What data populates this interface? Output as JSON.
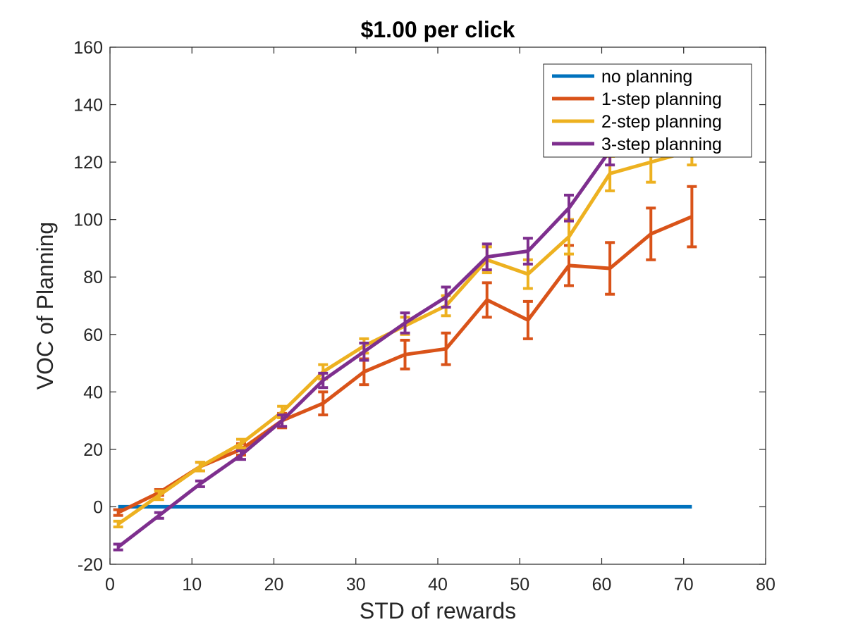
{
  "chart_data": {
    "type": "line",
    "title": "$1.00 per click",
    "xlabel": "STD of rewards",
    "ylabel": "VOC of Planning",
    "xlim": [
      0,
      80
    ],
    "ylim": [
      -20,
      160
    ],
    "xticks": [
      0,
      10,
      20,
      30,
      40,
      50,
      60,
      70,
      80
    ],
    "yticks": [
      -20,
      0,
      20,
      40,
      60,
      80,
      100,
      120,
      140,
      160
    ],
    "grid": false,
    "legend_position": "top-right",
    "series": [
      {
        "name": "no planning",
        "color": "#0072BD",
        "x": [
          1,
          6,
          11,
          16,
          21,
          26,
          31,
          36,
          41,
          46,
          51,
          56,
          61,
          66,
          71
        ],
        "y": [
          0,
          0,
          0,
          0,
          0,
          0,
          0,
          0,
          0,
          0,
          0,
          0,
          0,
          0,
          0
        ],
        "err": [
          0,
          0,
          0,
          0,
          0,
          0,
          0,
          0,
          0,
          0,
          0,
          0,
          0,
          0,
          0
        ]
      },
      {
        "name": "1-step planning",
        "color": "#D95319",
        "x": [
          1,
          6,
          11,
          16,
          21,
          26,
          31,
          36,
          41,
          46,
          51,
          56,
          61,
          66,
          71
        ],
        "y": [
          -2,
          5,
          14,
          20,
          30,
          36,
          47,
          53,
          55,
          72,
          65,
          84,
          83,
          95,
          101
        ],
        "err": [
          1,
          1,
          1.5,
          2,
          2.5,
          4,
          4.5,
          5,
          5.5,
          6,
          6.5,
          7,
          9,
          9,
          10.5
        ]
      },
      {
        "name": "2-step planning",
        "color": "#EDB120",
        "x": [
          1,
          6,
          11,
          16,
          21,
          26,
          31,
          36,
          41,
          46,
          51,
          56,
          61,
          66,
          71
        ],
        "y": [
          -6,
          4,
          14,
          22,
          33,
          47,
          56,
          63,
          70,
          86,
          81,
          94,
          116,
          120,
          124
        ],
        "err": [
          1,
          1.5,
          1.5,
          1.5,
          2,
          2.5,
          2.5,
          3,
          3.5,
          4.5,
          5,
          6,
          6,
          7,
          5
        ]
      },
      {
        "name": "3-step planning",
        "color": "#7E2F8E",
        "x": [
          1,
          6,
          11,
          16,
          21,
          26,
          31,
          36,
          41,
          46,
          51,
          56,
          61,
          66,
          71
        ],
        "y": [
          -14,
          -3,
          8,
          18,
          30,
          44,
          54,
          64,
          73,
          87,
          89,
          104,
          124,
          127,
          130
        ],
        "err": [
          1,
          1,
          1,
          1.5,
          2,
          2.5,
          3,
          3.5,
          3.5,
          4.5,
          4.5,
          4.5,
          5,
          4,
          3
        ]
      }
    ]
  }
}
